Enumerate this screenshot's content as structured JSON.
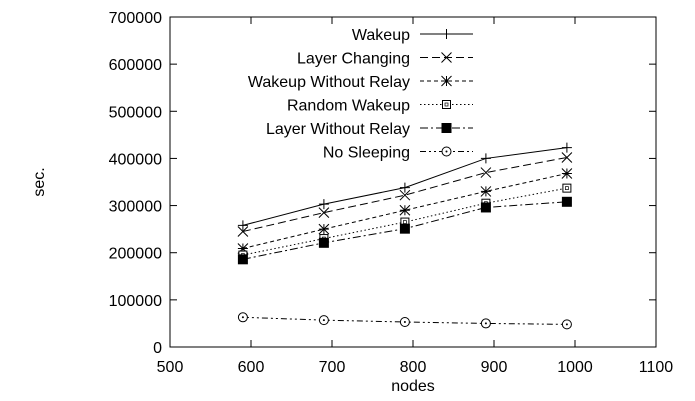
{
  "chart_data": {
    "type": "line",
    "xlabel": "nodes",
    "ylabel": "sec.",
    "xlim": [
      500,
      1100
    ],
    "ylim": [
      0,
      700000
    ],
    "xticks": [
      500,
      600,
      700,
      800,
      900,
      1000,
      1100
    ],
    "yticks": [
      0,
      100000,
      200000,
      300000,
      400000,
      500000,
      600000,
      700000
    ],
    "grid": false,
    "legend_position": "top-right",
    "x": [
      590,
      690,
      790,
      890,
      990
    ],
    "series": [
      {
        "name": "Wakeup",
        "marker": "plus",
        "dash": "solid",
        "values": [
          258000,
          303000,
          338000,
          400000,
          423000
        ]
      },
      {
        "name": "Layer Changing",
        "marker": "cross",
        "dash": "dashed",
        "values": [
          245000,
          285000,
          322000,
          370000,
          402000
        ]
      },
      {
        "name": "Wakeup Without Relay",
        "marker": "star",
        "dash": "short-dashed",
        "values": [
          209000,
          250000,
          290000,
          330000,
          368000
        ]
      },
      {
        "name": "Random Wakeup",
        "marker": "open-square",
        "dash": "dotted",
        "values": [
          195000,
          230000,
          265000,
          305000,
          337000
        ]
      },
      {
        "name": "Layer Without Relay",
        "marker": "filled-square",
        "dash": "dash-dot",
        "values": [
          186000,
          221000,
          251000,
          296000,
          308000
        ]
      },
      {
        "name": "No Sleeping",
        "marker": "open-circle",
        "dash": "dash-dot-dot",
        "values": [
          63000,
          57000,
          53000,
          50000,
          48000
        ]
      }
    ]
  }
}
